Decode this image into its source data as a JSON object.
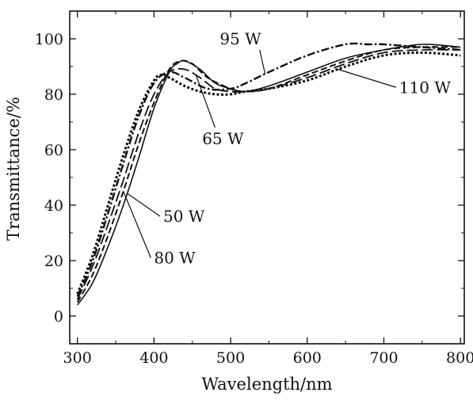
{
  "chart_data": {
    "type": "line",
    "title": "",
    "xlabel": "Wavelength/nm",
    "ylabel": "Transmittance/%",
    "xlim": [
      290,
      805
    ],
    "ylim": [
      -10,
      110
    ],
    "xticks": [
      300,
      400,
      500,
      600,
      700,
      800
    ],
    "yticks": [
      0,
      20,
      40,
      60,
      80,
      100
    ],
    "grid": false,
    "legend": "none",
    "series": [
      {
        "name": "50 W",
        "style": "solid",
        "x": [
          300,
          320,
          340,
          360,
          380,
          400,
          420,
          430,
          440,
          460,
          480,
          500,
          520,
          550,
          600,
          650,
          700,
          750,
          800
        ],
        "y": [
          4,
          12,
          25,
          40,
          57,
          75,
          88,
          91,
          92,
          89,
          84,
          82,
          81,
          83,
          88,
          93,
          96,
          98,
          97
        ]
      },
      {
        "name": "65 W",
        "style": "long-dash",
        "x": [
          300,
          320,
          340,
          360,
          380,
          400,
          420,
          440,
          460,
          480,
          500,
          520,
          550,
          600,
          650,
          700,
          750,
          800
        ],
        "y": [
          6,
          18,
          33,
          49,
          66,
          80,
          88,
          89,
          86,
          82,
          81,
          81,
          82,
          86,
          91,
          95,
          96,
          96
        ]
      },
      {
        "name": "80 W",
        "style": "dash",
        "x": [
          300,
          320,
          340,
          360,
          380,
          400,
          420,
          435,
          450,
          470,
          500,
          520,
          550,
          600,
          650,
          700,
          750,
          800
        ],
        "y": [
          5,
          15,
          29,
          45,
          62,
          77,
          89,
          92,
          91,
          86,
          82,
          81,
          82,
          87,
          92,
          96,
          97,
          97
        ]
      },
      {
        "name": "95 W",
        "style": "dash-dot",
        "x": [
          300,
          320,
          340,
          360,
          380,
          400,
          420,
          440,
          470,
          500,
          520,
          550,
          600,
          650,
          680,
          700,
          750,
          800
        ],
        "y": [
          7,
          20,
          37,
          55,
          72,
          84,
          88,
          86,
          82,
          82,
          84,
          88,
          94,
          98,
          98,
          98,
          97,
          96
        ]
      },
      {
        "name": "110 W",
        "style": "dot",
        "x": [
          300,
          320,
          340,
          360,
          380,
          400,
          410,
          420,
          440,
          460,
          480,
          500,
          520,
          550,
          600,
          650,
          700,
          750,
          800
        ],
        "y": [
          8,
          22,
          40,
          58,
          74,
          85,
          87,
          86,
          83,
          81,
          80,
          80,
          81,
          82,
          85,
          90,
          94,
          95,
          94
        ]
      }
    ],
    "annotations": [
      {
        "text": "95 W",
        "tx": 540,
        "ty": 100
      },
      {
        "text": "110 W",
        "tx": 720,
        "ty": 82.5
      },
      {
        "text": "65 W",
        "tx": 490,
        "ty": 64
      },
      {
        "text": "50 W",
        "tx": 412,
        "ty": 36
      },
      {
        "text": "80 W",
        "tx": 400,
        "ty": 21
      }
    ]
  }
}
